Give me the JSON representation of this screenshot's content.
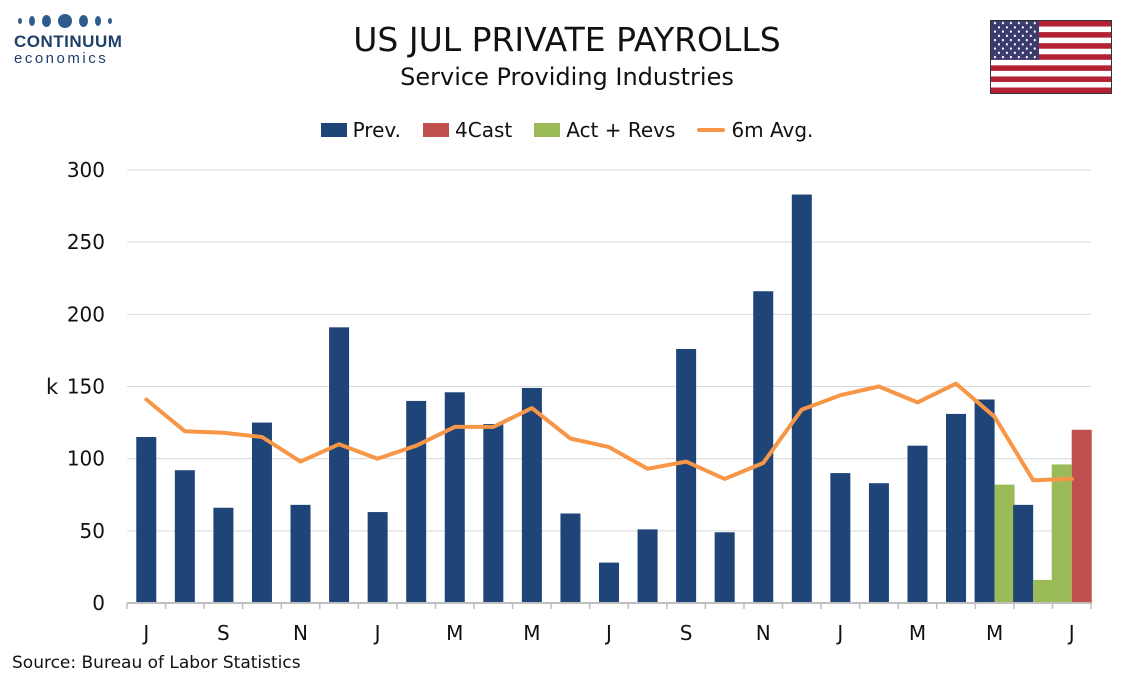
{
  "logo": {
    "name": "CONTINUUM",
    "sub": "economics"
  },
  "title": "US JUL PRIVATE PAYROLLS",
  "subtitle": "Service Providing Industries",
  "source": "Source: Bureau of Labor Statistics",
  "colors": {
    "prev": "#1f4478",
    "forecast": "#c0504d",
    "actual": "#9bbb59",
    "avg": "#f79646",
    "grid": "#d9d9d9"
  },
  "chart_data": {
    "type": "bar",
    "ylabel": "k",
    "ylim": [
      0,
      300
    ],
    "yticks": [
      0,
      50,
      100,
      150,
      200,
      250,
      300
    ],
    "grid": true,
    "legend_position": "top",
    "xtick_labels": [
      "J",
      "S",
      "N",
      "J",
      "M",
      "M",
      "J",
      "S",
      "N",
      "J",
      "M",
      "M",
      "J"
    ],
    "series": [
      {
        "name": "Prev.",
        "kind": "bar",
        "values": [
          115,
          92,
          66,
          125,
          68,
          191,
          63,
          140,
          146,
          124,
          149,
          62,
          28,
          51,
          176,
          49,
          216,
          283,
          90,
          83,
          109,
          131,
          141,
          68,
          null
        ]
      },
      {
        "name": "4Cast",
        "kind": "bar",
        "values": [
          null,
          null,
          null,
          null,
          null,
          null,
          null,
          null,
          null,
          null,
          null,
          null,
          null,
          null,
          null,
          null,
          null,
          null,
          null,
          null,
          null,
          null,
          null,
          null,
          120
        ]
      },
      {
        "name": "Act + Revs",
        "kind": "bar",
        "values": [
          null,
          null,
          null,
          null,
          null,
          null,
          null,
          null,
          null,
          null,
          null,
          null,
          null,
          null,
          null,
          null,
          null,
          null,
          null,
          null,
          null,
          null,
          82,
          16,
          96
        ]
      },
      {
        "name": "6m Avg.",
        "kind": "line",
        "values": [
          141,
          119,
          118,
          115,
          98,
          110,
          100,
          109,
          122,
          122,
          135,
          114,
          108,
          93,
          98,
          86,
          97,
          134,
          144,
          150,
          139,
          152,
          129,
          85,
          86
        ]
      }
    ]
  }
}
